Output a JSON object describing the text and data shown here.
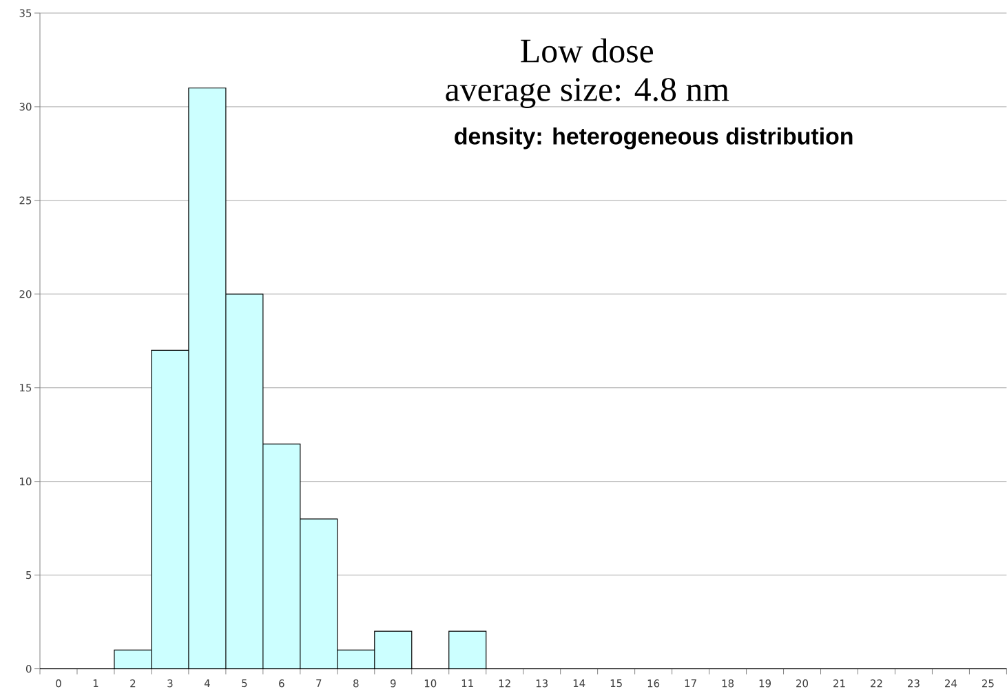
{
  "chart_data": {
    "type": "bar",
    "title": "Low dose",
    "subtitle": "average size: 4.8 nm",
    "annotations": [
      "density: heterogeneous distribution"
    ],
    "categories": [
      "0",
      "1",
      "2",
      "3",
      "4",
      "5",
      "6",
      "7",
      "8",
      "9",
      "10",
      "11",
      "12",
      "13",
      "14",
      "15",
      "16",
      "17",
      "18",
      "19",
      "20",
      "21",
      "22",
      "23",
      "24",
      "25"
    ],
    "values": [
      0,
      0,
      1,
      17,
      31,
      20,
      12,
      8,
      1,
      2,
      0,
      2,
      0,
      0,
      0,
      0,
      0,
      0,
      0,
      0,
      0,
      0,
      0,
      0,
      0,
      0
    ],
    "color": "#ccffff",
    "ylim": [
      0,
      35
    ],
    "yticks": [
      0,
      5,
      10,
      15,
      20,
      25,
      30,
      35
    ],
    "grid": "y"
  }
}
